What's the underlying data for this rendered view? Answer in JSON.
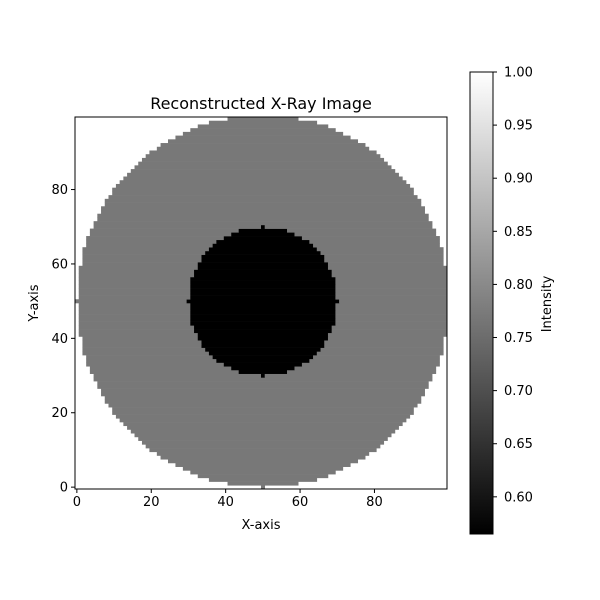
{
  "chart_data": {
    "type": "heatmap",
    "title": "Reconstructed X-Ray Image",
    "xlabel": "X-axis",
    "ylabel": "Y-axis",
    "colorbar_label": "Intensity",
    "colormap": "gray",
    "grid": false,
    "legend": "colorbar-right",
    "grid_size": [
      100,
      100
    ],
    "xlim": [
      -0.5,
      99.5
    ],
    "ylim": [
      -0.5,
      99.5
    ],
    "xticks": [
      0,
      20,
      40,
      60,
      80
    ],
    "yticks": [
      0,
      20,
      40,
      60,
      80
    ],
    "color_range": [
      0.565,
      1.0
    ],
    "colorbar_ticks": [
      "0.60",
      "0.65",
      "0.70",
      "0.75",
      "0.80",
      "0.85",
      "0.90",
      "0.95",
      "1.00"
    ],
    "background_value": 1.0,
    "regions": [
      {
        "shape": "disk",
        "center": [
          50,
          50
        ],
        "radius": 50,
        "value": 0.77
      },
      {
        "shape": "disk",
        "center": [
          50,
          50
        ],
        "radius": 20,
        "value": 0.565
      }
    ]
  }
}
